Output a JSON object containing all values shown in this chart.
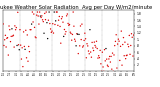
{
  "title": "Milwaukee Weather Solar Radiation  Avg per Day W/m2/minute",
  "title_fontsize": 3.8,
  "background_color": "#ffffff",
  "dot_color_primary": "#dd0000",
  "dot_color_secondary": "#000000",
  "ylim": [
    0,
    1.9
  ],
  "yticks": [
    0.2,
    0.4,
    0.6,
    0.8,
    1.0,
    1.2,
    1.4,
    1.6,
    1.8
  ],
  "ytick_labels": [
    ".2",
    ".4",
    ".6",
    ".8",
    "1.",
    "1.2",
    "1.4",
    "1.6",
    "1.8"
  ],
  "num_points": 180,
  "seed": 7,
  "num_dividers": 8,
  "dot_size": 1.0
}
